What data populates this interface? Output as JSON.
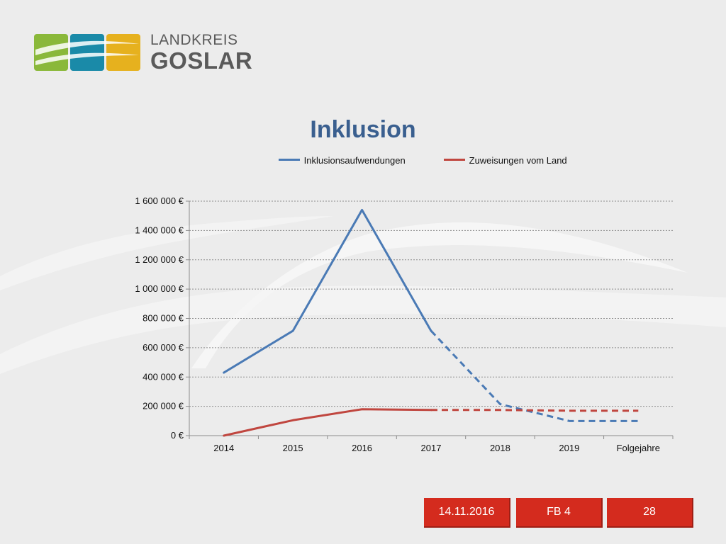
{
  "logo": {
    "line1": "LANDKREIS",
    "line2": "GOSLAR",
    "tile_colors": [
      "#8ab83a",
      "#1a8aa8",
      "#e6b11e"
    ]
  },
  "chart_data": {
    "type": "line",
    "title": "Inklusion",
    "categories": [
      "2014",
      "2015",
      "2016",
      "2017",
      "2018",
      "2019",
      "Folgejahre"
    ],
    "ylim": [
      0,
      1600000
    ],
    "yticks": [
      0,
      200000,
      400000,
      600000,
      800000,
      1000000,
      1200000,
      1400000,
      1600000
    ],
    "ytick_labels": [
      "0 €",
      "200 000 €",
      "400 000 €",
      "600 000 €",
      "800 000 €",
      "1 000 000 €",
      "1 200 000 €",
      "1 400 000 €",
      "1 600 000 €"
    ],
    "grid": true,
    "legend_position": "top",
    "series": [
      {
        "name": "Inklusionsaufwendungen",
        "color": "#4a7ab5",
        "values": [
          430000,
          715000,
          1540000,
          715000,
          215000,
          100000,
          100000
        ],
        "solid_until_index": 3
      },
      {
        "name": "Zuweisungen vom Land",
        "color": "#c0463f",
        "values": [
          0,
          105000,
          180000,
          175000,
          175000,
          170000,
          170000
        ],
        "solid_until_index": 3
      }
    ]
  },
  "footer": {
    "date": "14.11.2016",
    "department": "FB 4",
    "page": "28"
  }
}
